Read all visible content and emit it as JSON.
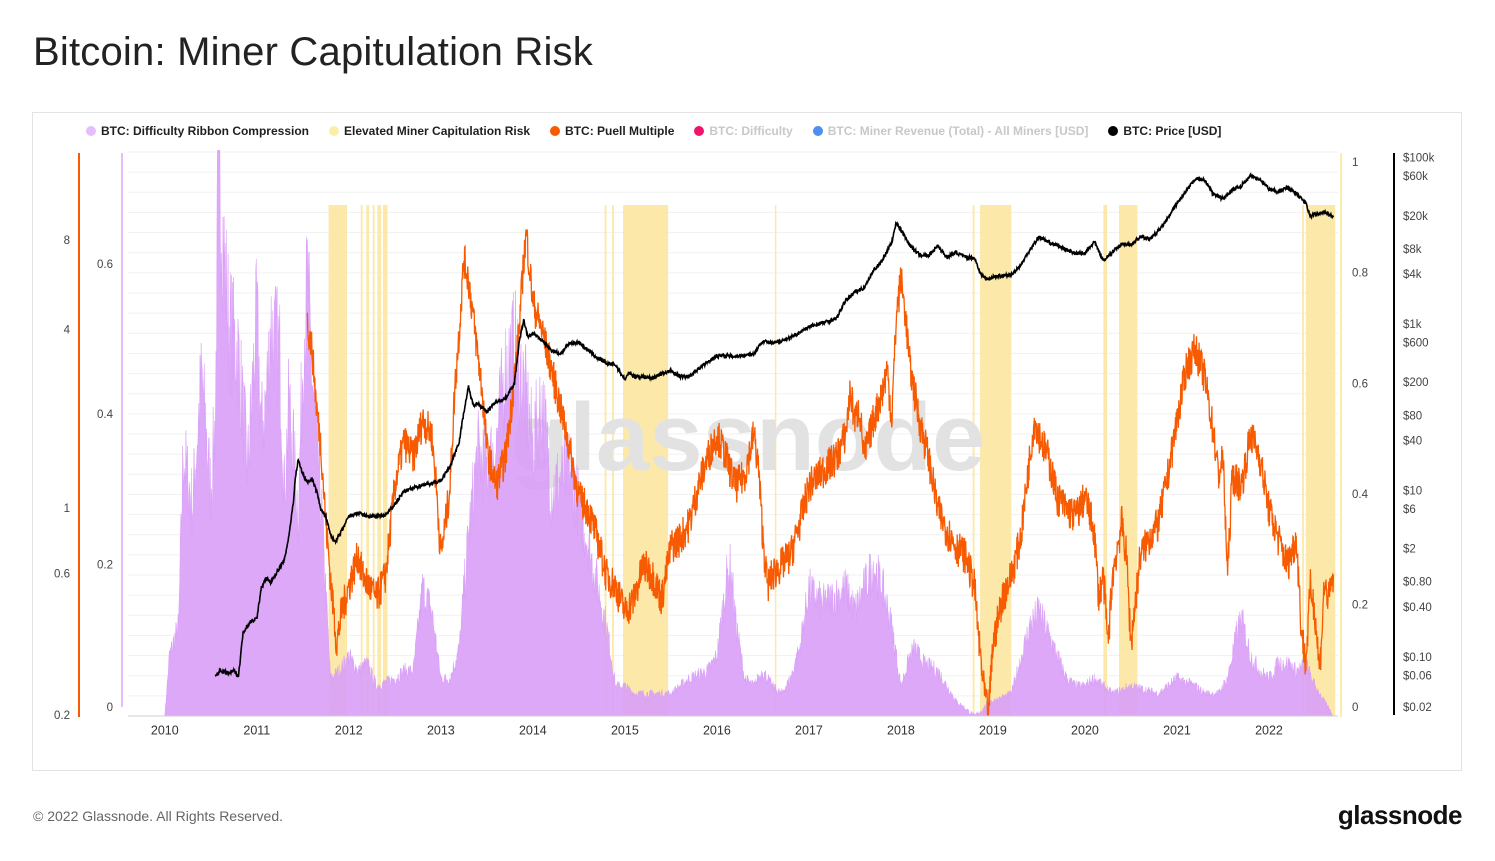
{
  "page": {
    "title": "Bitcoin: Miner Capitulation Risk",
    "footer": "© 2022 Glassnode. All Rights Reserved.",
    "logo": "glassnode",
    "watermark": "glassnode"
  },
  "legend": [
    {
      "label": "BTC: Difficulty Ribbon Compression",
      "color": "#e6bdfa",
      "active": true
    },
    {
      "label": "Elevated Miner Capitulation Risk",
      "color": "#fbeea9",
      "active": true
    },
    {
      "label": "BTC: Puell Multiple",
      "color": "#f75a00",
      "active": true
    },
    {
      "label": "BTC: Difficulty",
      "color": "#f0156c",
      "active": false
    },
    {
      "label": "BTC: Miner Revenue (Total) - All Miners [USD]",
      "color": "#4d8ff0",
      "active": false
    },
    {
      "label": "BTC: Price [USD]",
      "color": "#000000",
      "active": true
    }
  ],
  "chart_data": {
    "type": "line",
    "title": "Bitcoin: Miner Capitulation Risk",
    "x_range": [
      2009.6,
      2022.75
    ],
    "x_ticks": [
      "2010",
      "2011",
      "2012",
      "2013",
      "2014",
      "2015",
      "2016",
      "2017",
      "2018",
      "2019",
      "2020",
      "2021",
      "2022"
    ],
    "axes": {
      "puell": {
        "scale": "log",
        "range": [
          0.2,
          16
        ],
        "ticks": [
          {
            "v": 0.2,
            "label": "0.2"
          },
          {
            "v": 0.6,
            "label": "0.6"
          },
          {
            "v": 1,
            "label": "1"
          },
          {
            "v": 4,
            "label": "4"
          },
          {
            "v": 8,
            "label": "8"
          }
        ]
      },
      "ribbon_left": {
        "scale": "linear",
        "range": [
          0,
          0.75
        ],
        "ticks": [
          {
            "v": 0,
            "label": "0"
          },
          {
            "v": 0.2,
            "label": "0.2"
          },
          {
            "v": 0.4,
            "label": "0.4"
          },
          {
            "v": 0.6,
            "label": "0.6"
          }
        ]
      },
      "ribbon_right": {
        "scale": "linear",
        "range": [
          0,
          1.02
        ],
        "ticks": [
          {
            "v": 0,
            "label": "0"
          },
          {
            "v": 0.2,
            "label": "0.2"
          },
          {
            "v": 0.4,
            "label": "0.4"
          },
          {
            "v": 0.6,
            "label": "0.6"
          },
          {
            "v": 0.8,
            "label": "0.8"
          },
          {
            "v": 1,
            "label": "1"
          }
        ]
      },
      "price": {
        "scale": "log",
        "range": [
          0.02,
          120000
        ],
        "ticks": [
          {
            "v": 0.02,
            "label": "$0.02"
          },
          {
            "v": 0.06,
            "label": "$0.06"
          },
          {
            "v": 0.1,
            "label": "$0.10"
          },
          {
            "v": 0.4,
            "label": "$0.40"
          },
          {
            "v": 0.8,
            "label": "$0.80"
          },
          {
            "v": 2,
            "label": "$2"
          },
          {
            "v": 6,
            "label": "$6"
          },
          {
            "v": 10,
            "label": "$10"
          },
          {
            "v": 40,
            "label": "$40"
          },
          {
            "v": 80,
            "label": "$80"
          },
          {
            "v": 200,
            "label": "$200"
          },
          {
            "v": 600,
            "label": "$600"
          },
          {
            "v": 1000,
            "label": "$1k"
          },
          {
            "v": 4000,
            "label": "$4k"
          },
          {
            "v": 8000,
            "label": "$8k"
          },
          {
            "v": 20000,
            "label": "$20k"
          },
          {
            "v": 60000,
            "label": "$60k"
          },
          {
            "v": 100000,
            "label": "$100k"
          }
        ]
      }
    },
    "risk_zones": [
      [
        2011.78,
        2011.98
      ],
      [
        2012.13,
        2012.15
      ],
      [
        2012.19,
        2012.22
      ],
      [
        2012.26,
        2012.28
      ],
      [
        2012.31,
        2012.35
      ],
      [
        2012.37,
        2012.42
      ],
      [
        2014.78,
        2014.8
      ],
      [
        2014.86,
        2014.88
      ],
      [
        2014.98,
        2015.47
      ],
      [
        2016.63,
        2016.64
      ],
      [
        2018.78,
        2018.8
      ],
      [
        2018.86,
        2019.2
      ],
      [
        2020.2,
        2020.24
      ],
      [
        2020.37,
        2020.57
      ],
      [
        2022.36,
        2022.38
      ],
      [
        2022.4,
        2022.72
      ]
    ],
    "series": [
      {
        "name": "BTC: Difficulty Ribbon Compression",
        "axis": "ribbon_left",
        "type": "area",
        "x": [
          2010.0,
          2010.05,
          2010.15,
          2010.2,
          2010.3,
          2010.4,
          2010.5,
          2010.55,
          2010.58,
          2010.65,
          2010.7,
          2010.8,
          2010.9,
          2011.0,
          2011.05,
          2011.1,
          2011.15,
          2011.25,
          2011.3,
          2011.35,
          2011.4,
          2011.45,
          2011.5,
          2011.55,
          2011.6,
          2011.7,
          2011.8,
          2011.9,
          2012.0,
          2012.1,
          2012.2,
          2012.3,
          2012.5,
          2012.6,
          2012.7,
          2012.8,
          2012.9,
          2013.0,
          2013.1,
          2013.2,
          2013.3,
          2013.4,
          2013.5,
          2013.6,
          2013.7,
          2013.8,
          2013.9,
          2014.0,
          2014.1,
          2014.2,
          2014.4,
          2014.6,
          2014.8,
          2014.9,
          2015.0,
          2015.1,
          2015.3,
          2015.5,
          2015.7,
          2015.9,
          2016.0,
          2016.1,
          2016.15,
          2016.2,
          2016.3,
          2016.4,
          2016.5,
          2016.6,
          2016.7,
          2016.8,
          2016.9,
          2017.0,
          2017.05,
          2017.15,
          2017.3,
          2017.4,
          2017.5,
          2017.6,
          2017.7,
          2017.8,
          2017.9,
          2018.0,
          2018.1,
          2018.15,
          2018.25,
          2018.4,
          2018.6,
          2018.8,
          2018.9,
          2018.95,
          2019.0,
          2019.2,
          2019.4,
          2019.5,
          2019.6,
          2019.7,
          2019.8,
          2019.9,
          2020.0,
          2020.1,
          2020.2,
          2020.3,
          2020.5,
          2020.8,
          2021.0,
          2021.2,
          2021.3,
          2021.45,
          2021.55,
          2021.65,
          2021.7,
          2021.8,
          2021.9,
          2022.0,
          2022.1,
          2022.2,
          2022.3,
          2022.4,
          2022.5,
          2022.7
        ],
        "values": [
          0.0,
          0.08,
          0.12,
          0.35,
          0.28,
          0.45,
          0.3,
          0.4,
          0.75,
          0.6,
          0.52,
          0.48,
          0.33,
          0.53,
          0.38,
          0.42,
          0.52,
          0.48,
          0.3,
          0.42,
          0.35,
          0.27,
          0.48,
          0.58,
          0.45,
          0.28,
          0.05,
          0.06,
          0.08,
          0.06,
          0.07,
          0.04,
          0.05,
          0.06,
          0.06,
          0.17,
          0.14,
          0.05,
          0.05,
          0.09,
          0.24,
          0.35,
          0.33,
          0.36,
          0.46,
          0.49,
          0.44,
          0.36,
          0.42,
          0.3,
          0.33,
          0.23,
          0.12,
          0.04,
          0.04,
          0.03,
          0.03,
          0.03,
          0.05,
          0.06,
          0.08,
          0.18,
          0.2,
          0.13,
          0.05,
          0.04,
          0.06,
          0.04,
          0.03,
          0.05,
          0.09,
          0.17,
          0.16,
          0.15,
          0.16,
          0.17,
          0.14,
          0.17,
          0.2,
          0.17,
          0.12,
          0.04,
          0.08,
          0.09,
          0.07,
          0.06,
          0.02,
          0.0,
          0.01,
          0.02,
          0.02,
          0.03,
          0.12,
          0.14,
          0.11,
          0.08,
          0.05,
          0.04,
          0.04,
          0.05,
          0.04,
          0.03,
          0.04,
          0.03,
          0.05,
          0.04,
          0.03,
          0.03,
          0.05,
          0.11,
          0.13,
          0.08,
          0.06,
          0.05,
          0.07,
          0.07,
          0.06,
          0.07,
          0.04,
          0.0
        ]
      },
      {
        "name": "BTC: Puell Multiple",
        "axis": "puell",
        "type": "line",
        "x": [
          2011.55,
          2011.6,
          2011.65,
          2011.7,
          2011.75,
          2011.82,
          2011.87,
          2011.92,
          2012.0,
          2012.1,
          2012.15,
          2012.3,
          2012.4,
          2012.5,
          2012.6,
          2012.7,
          2012.8,
          2012.9,
          2012.95,
          2013.0,
          2013.05,
          2013.1,
          2013.15,
          2013.2,
          2013.25,
          2013.3,
          2013.35,
          2013.45,
          2013.5,
          2013.6,
          2013.7,
          2013.75,
          2013.85,
          2013.9,
          2013.93,
          2014.0,
          2014.1,
          2014.2,
          2014.3,
          2014.4,
          2014.5,
          2014.6,
          2014.7,
          2014.8,
          2014.9,
          2015.0,
          2015.1,
          2015.2,
          2015.3,
          2015.4,
          2015.5,
          2015.6,
          2015.7,
          2015.8,
          2015.9,
          2016.0,
          2016.1,
          2016.2,
          2016.3,
          2016.4,
          2016.45,
          2016.5,
          2016.55,
          2016.6,
          2016.7,
          2016.8,
          2016.9,
          2017.0,
          2017.1,
          2017.2,
          2017.3,
          2017.4,
          2017.45,
          2017.5,
          2017.55,
          2017.6,
          2017.7,
          2017.8,
          2017.85,
          2017.9,
          2017.95,
          2018.0,
          2018.05,
          2018.1,
          2018.2,
          2018.3,
          2018.4,
          2018.5,
          2018.6,
          2018.7,
          2018.8,
          2018.85,
          2018.9,
          2018.95,
          2019.0,
          2019.1,
          2019.2,
          2019.3,
          2019.4,
          2019.45,
          2019.5,
          2019.6,
          2019.7,
          2019.8,
          2019.9,
          2020.0,
          2020.1,
          2020.15,
          2020.2,
          2020.25,
          2020.3,
          2020.4,
          2020.45,
          2020.5,
          2020.6,
          2020.7,
          2020.8,
          2020.9,
          2021.0,
          2021.1,
          2021.2,
          2021.3,
          2021.4,
          2021.45,
          2021.5,
          2021.55,
          2021.6,
          2021.7,
          2021.8,
          2021.9,
          2022.0,
          2022.1,
          2022.2,
          2022.3,
          2022.35,
          2022.4,
          2022.45,
          2022.5,
          2022.55,
          2022.6,
          2022.65,
          2022.7
        ],
        "values": [
          4.2,
          3.5,
          2.2,
          1.6,
          0.9,
          0.5,
          0.35,
          0.45,
          0.55,
          0.7,
          0.6,
          0.5,
          0.6,
          1.2,
          1.7,
          1.5,
          2.0,
          1.8,
          1.2,
          0.7,
          0.9,
          1.2,
          2.5,
          4.0,
          7.0,
          6.0,
          4.5,
          2.5,
          1.6,
          1.2,
          1.5,
          2.0,
          4.0,
          7.0,
          8.5,
          5.0,
          4.0,
          3.0,
          2.2,
          1.6,
          1.1,
          1.0,
          0.8,
          0.6,
          0.55,
          0.45,
          0.5,
          0.65,
          0.6,
          0.5,
          0.75,
          0.8,
          0.9,
          1.2,
          1.5,
          1.8,
          1.5,
          1.2,
          1.3,
          1.8,
          1.4,
          0.8,
          0.55,
          0.6,
          0.65,
          0.7,
          0.9,
          1.2,
          1.3,
          1.4,
          1.5,
          1.8,
          2.5,
          2.0,
          2.2,
          1.5,
          2.0,
          2.5,
          3.0,
          2.0,
          4.5,
          6.0,
          4.5,
          3.0,
          2.0,
          1.5,
          1.0,
          0.85,
          0.75,
          0.7,
          0.55,
          0.35,
          0.25,
          0.2,
          0.35,
          0.5,
          0.6,
          0.8,
          1.5,
          2.0,
          1.8,
          1.5,
          1.1,
          1.0,
          0.95,
          1.1,
          0.85,
          0.5,
          0.6,
          0.35,
          0.6,
          0.9,
          0.7,
          0.35,
          0.7,
          0.8,
          0.9,
          1.3,
          2.0,
          3.0,
          3.5,
          2.8,
          1.8,
          1.3,
          1.5,
          0.6,
          1.3,
          1.2,
          1.8,
          1.5,
          1.0,
          0.8,
          0.65,
          0.8,
          0.4,
          0.3,
          0.55,
          0.45,
          0.28,
          0.55,
          0.5,
          0.6
        ]
      },
      {
        "name": "BTC: Price [USD]",
        "axis": "price",
        "type": "line",
        "x": [
          2010.55,
          2010.6,
          2010.7,
          2010.75,
          2010.8,
          2010.85,
          2010.9,
          2010.95,
          2011.0,
          2011.05,
          2011.1,
          2011.15,
          2011.2,
          2011.3,
          2011.35,
          2011.4,
          2011.42,
          2011.45,
          2011.5,
          2011.55,
          2011.6,
          2011.65,
          2011.7,
          2011.75,
          2011.8,
          2011.85,
          2011.9,
          2012.0,
          2012.1,
          2012.2,
          2012.3,
          2012.4,
          2012.5,
          2012.6,
          2012.7,
          2012.8,
          2012.9,
          2013.0,
          2013.1,
          2013.2,
          2013.25,
          2013.3,
          2013.35,
          2013.4,
          2013.5,
          2013.6,
          2013.7,
          2013.8,
          2013.85,
          2013.9,
          2013.95,
          2014.0,
          2014.1,
          2014.2,
          2014.3,
          2014.4,
          2014.5,
          2014.6,
          2014.7,
          2014.8,
          2014.9,
          2015.0,
          2015.05,
          2015.1,
          2015.2,
          2015.3,
          2015.4,
          2015.5,
          2015.6,
          2015.7,
          2015.8,
          2015.9,
          2016.0,
          2016.2,
          2016.4,
          2016.5,
          2016.6,
          2016.8,
          2017.0,
          2017.2,
          2017.3,
          2017.4,
          2017.5,
          2017.6,
          2017.7,
          2017.8,
          2017.9,
          2017.95,
          2018.0,
          2018.1,
          2018.2,
          2018.3,
          2018.4,
          2018.5,
          2018.6,
          2018.7,
          2018.8,
          2018.87,
          2018.95,
          2019.0,
          2019.2,
          2019.3,
          2019.4,
          2019.5,
          2019.6,
          2019.7,
          2019.8,
          2019.9,
          2020.0,
          2020.1,
          2020.2,
          2020.3,
          2020.4,
          2020.5,
          2020.6,
          2020.7,
          2020.8,
          2020.9,
          2021.0,
          2021.1,
          2021.2,
          2021.3,
          2021.4,
          2021.5,
          2021.6,
          2021.7,
          2021.8,
          2021.9,
          2022.0,
          2022.1,
          2022.2,
          2022.3,
          2022.4,
          2022.45,
          2022.5,
          2022.6,
          2022.7
        ],
        "values": [
          0.06,
          0.07,
          0.065,
          0.07,
          0.06,
          0.2,
          0.25,
          0.28,
          0.3,
          0.7,
          0.9,
          0.8,
          1.0,
          1.5,
          3.0,
          8.0,
          15.0,
          24.0,
          16.0,
          13.0,
          14.0,
          10.0,
          6.0,
          5.0,
          3.0,
          2.5,
          3.0,
          5.0,
          5.5,
          5.0,
          5.0,
          5.2,
          7.0,
          10.0,
          11.0,
          12.0,
          12.5,
          13.5,
          20.0,
          40.0,
          90.0,
          180.0,
          110.0,
          115.0,
          90.0,
          120.0,
          130.0,
          200.0,
          600.0,
          1150.0,
          700.0,
          800.0,
          650.0,
          500.0,
          450.0,
          600.0,
          620.0,
          500.0,
          400.0,
          350.0,
          330.0,
          220.0,
          270.0,
          240.0,
          240.0,
          230.0,
          260.0,
          280.0,
          240.0,
          240.0,
          300.0,
          360.0,
          430.0,
          420.0,
          450.0,
          650.0,
          600.0,
          700.0,
          950.0,
          1100.0,
          1200.0,
          2000.0,
          2500.0,
          2800.0,
          4500.0,
          6000.0,
          10000.0,
          17000.0,
          14000.0,
          9000.0,
          7000.0,
          6800.0,
          9000.0,
          6500.0,
          7500.0,
          6500.0,
          6400.0,
          4000.0,
          3500.0,
          3800.0,
          4000.0,
          5200.0,
          8000.0,
          11500.0,
          10000.0,
          9000.0,
          8000.0,
          7300.0,
          7200.0,
          10000.0,
          6000.0,
          7500.0,
          9500.0,
          9200.0,
          11500.0,
          10800.0,
          13500.0,
          19000.0,
          29000.0,
          40000.0,
          58000.0,
          55000.0,
          37000.0,
          33000.0,
          42000.0,
          47000.0,
          62000.0,
          57000.0,
          43000.0,
          40000.0,
          45000.0,
          38000.0,
          29000.0,
          20000.0,
          21500.0,
          23000.0,
          19800.0
        ]
      }
    ]
  }
}
